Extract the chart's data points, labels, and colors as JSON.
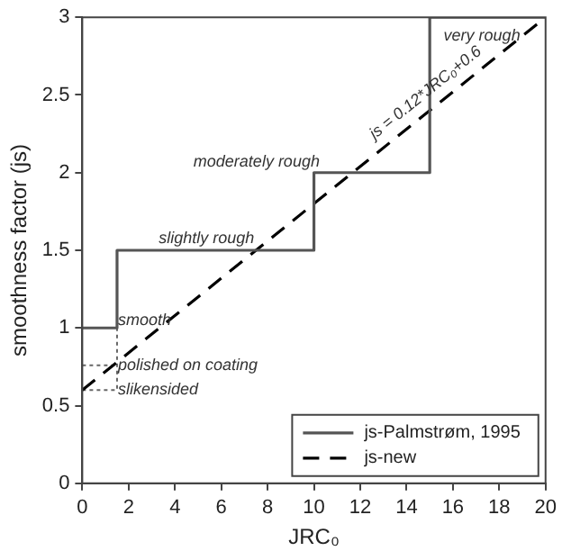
{
  "chart_data": {
    "type": "line",
    "xlabel": "JRC₀",
    "ylabel": "smoothness factor (js)",
    "xlim": [
      0,
      20
    ],
    "xticks": [
      0,
      2,
      4,
      6,
      8,
      10,
      12,
      14,
      16,
      18,
      20
    ],
    "ylim": [
      0,
      3
    ],
    "yticks": [
      0,
      0.5,
      1,
      1.5,
      2,
      2.5,
      3
    ],
    "grid": false,
    "legend": "bottom right",
    "marker": "none",
    "series": [
      {
        "name": "js-Palmstrøm, 1995",
        "color": "#555555",
        "line_style": "solid",
        "x": [
          0,
          1.5,
          1.5,
          10,
          10,
          15,
          15,
          20
        ],
        "values": [
          1,
          1,
          1.5,
          1.5,
          2,
          2,
          3,
          3
        ]
      },
      {
        "name": "js-new",
        "color": "#000000",
        "line_style": "dashed",
        "x": [
          0,
          20
        ],
        "values": [
          0.6,
          3
        ]
      },
      {
        "color": "#666666",
        "line_style": "dotted",
        "x": [
          0,
          1.5,
          1.5
        ],
        "values": [
          0.6,
          0.6,
          1
        ]
      },
      {
        "color": "#666666",
        "line_style": "dotted",
        "x": [
          0,
          1.5
        ],
        "values": [
          0.76,
          0.76
        ]
      }
    ],
    "annotations": [
      "smooth",
      "polished on coating",
      "slikensided",
      "slightly rough",
      "moderately rough",
      "very rough",
      "js = 0.12*JRC₀+0.6"
    ]
  }
}
